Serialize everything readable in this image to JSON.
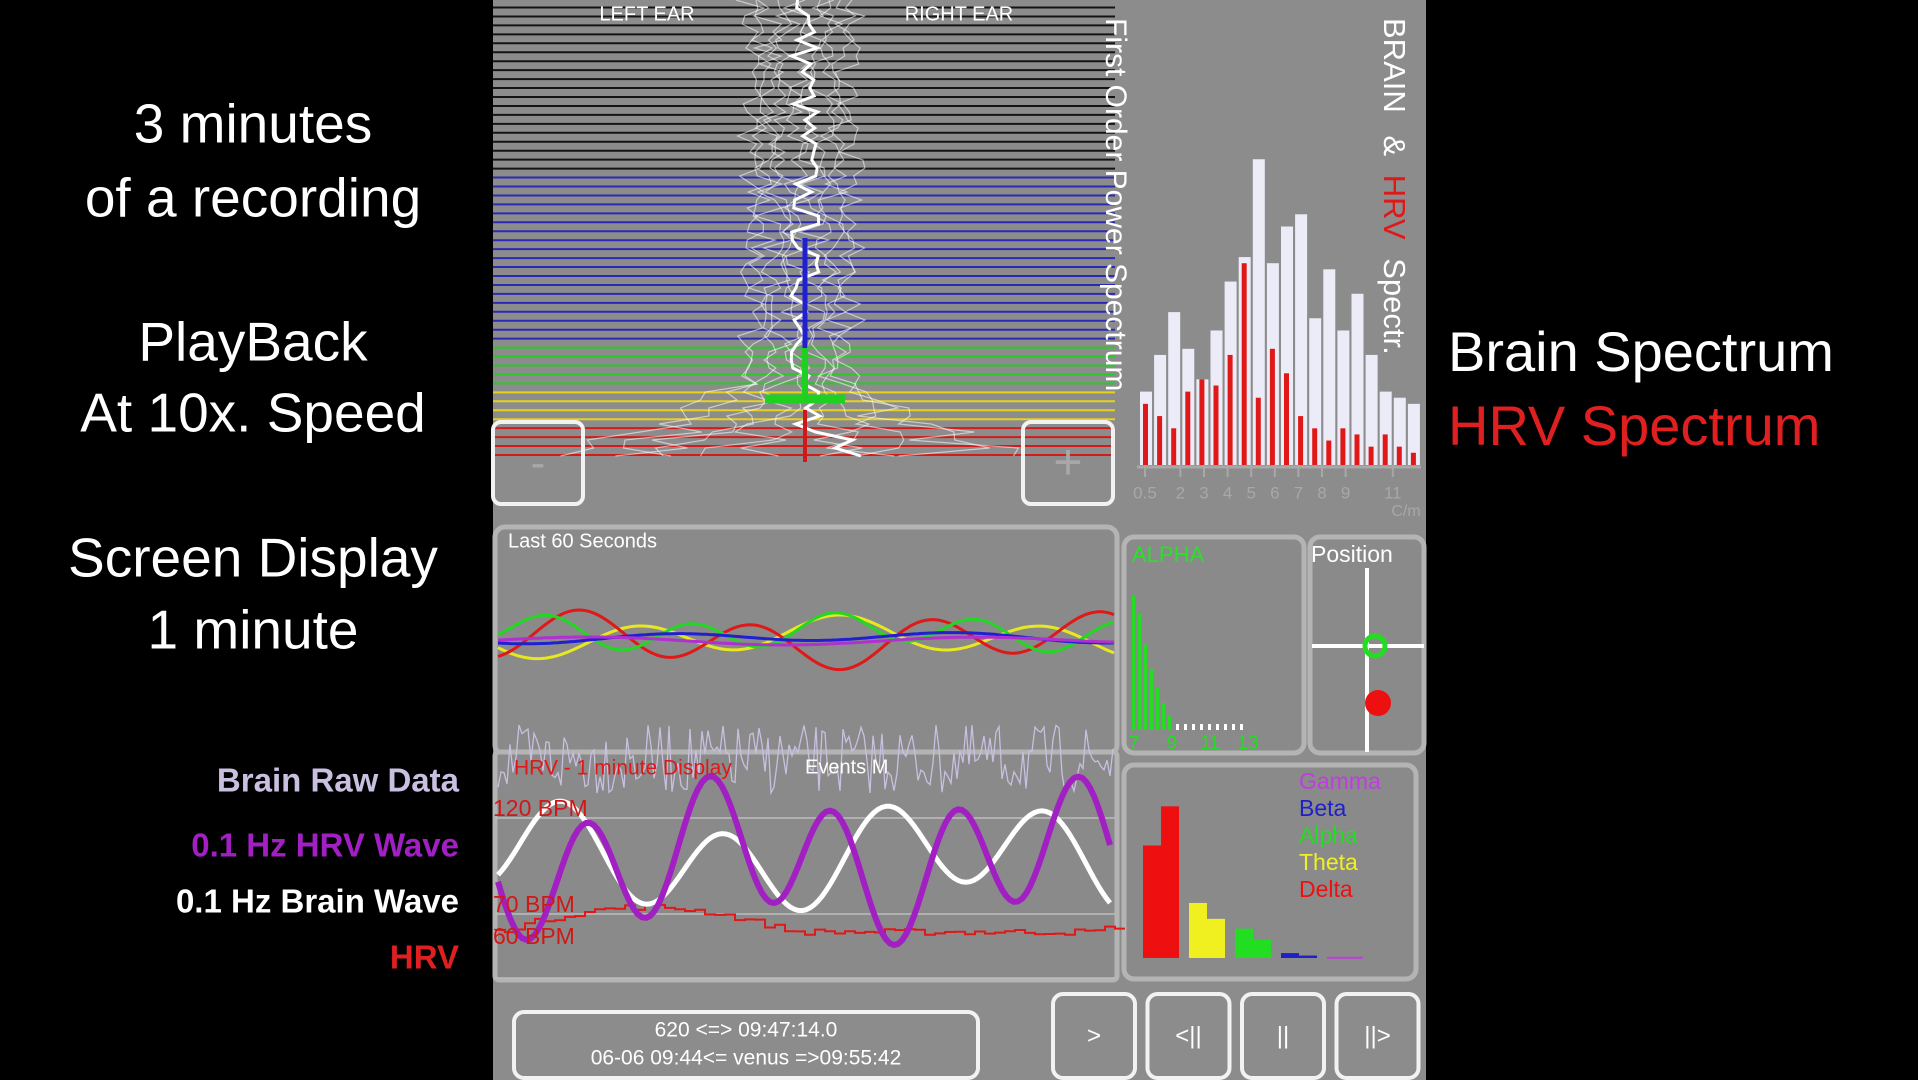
{
  "overlay_left": {
    "lines": [
      "3 minutes",
      "of a recording",
      "PlayBack",
      "At 10x. Speed",
      "Screen Display",
      "1 minute"
    ],
    "legend": [
      {
        "text": "Brain Raw Data",
        "color": "#c9bfe0"
      },
      {
        "text": "0.1 Hz HRV Wave",
        "color": "#a21fc4"
      },
      {
        "text": "0.1 Hz Brain Wave",
        "color": "#ffffff"
      },
      {
        "text": "HRV",
        "color": "#e02020"
      }
    ]
  },
  "overlay_right": {
    "lines": [
      {
        "text": "Brain Spectrum",
        "color": "#ffffff"
      },
      {
        "text": "HRV Spectrum",
        "color": "#e02020"
      }
    ]
  },
  "app": {
    "ear_labels": [
      "LEFT EAR",
      "RIGHT EAR"
    ],
    "zoom_buttons": [
      "-",
      "+"
    ],
    "power_title": "First Order Power Spectrum",
    "spectrum_title": [
      "BRAIN",
      "&",
      "HRV",
      "Spectr."
    ],
    "spectrum": {
      "brain": [
        60,
        90,
        125,
        95,
        70,
        110,
        150,
        170,
        250,
        165,
        195,
        205,
        120,
        160,
        110,
        140,
        90,
        60,
        55,
        50
      ],
      "hrv": [
        50,
        40,
        30,
        60,
        70,
        65,
        90,
        165,
        55,
        95,
        75,
        40,
        30,
        20,
        30,
        25,
        15,
        25,
        15,
        10
      ],
      "ticks": [
        0.5,
        2,
        3,
        4,
        5,
        6,
        7,
        8,
        9,
        11
      ],
      "unit": "C/m"
    },
    "last60": "Last 60 Seconds",
    "hrv_panel": {
      "title": "HRV - 1 minute Display",
      "events": "Events M",
      "bpm": [
        "120 BPM",
        "70 BPM",
        "60 BPM"
      ]
    },
    "alpha": {
      "title": "ALPHA",
      "values": [
        110,
        95,
        70,
        50,
        35,
        22,
        12
      ],
      "ticks": [
        7,
        9,
        11,
        13
      ]
    },
    "position": "Position",
    "bands": [
      {
        "name": "Gamma",
        "color": "#c03de0",
        "values": [
          1,
          1
        ]
      },
      {
        "name": "Beta",
        "color": "#2020c8",
        "values": [
          4,
          2
        ]
      },
      {
        "name": "Alpha",
        "color": "#22dd22",
        "values": [
          24,
          15
        ]
      },
      {
        "name": "Theta",
        "color": "#f0f020",
        "values": [
          45,
          32
        ]
      },
      {
        "name": "Delta",
        "color": "#ee1010",
        "values": [
          92,
          124
        ]
      }
    ],
    "status": [
      "620 <=> 09:47:14.0",
      "06-06 09:44<= venus =>09:55:42"
    ],
    "playback": [
      ">",
      "<||",
      "||",
      "||>"
    ]
  }
}
